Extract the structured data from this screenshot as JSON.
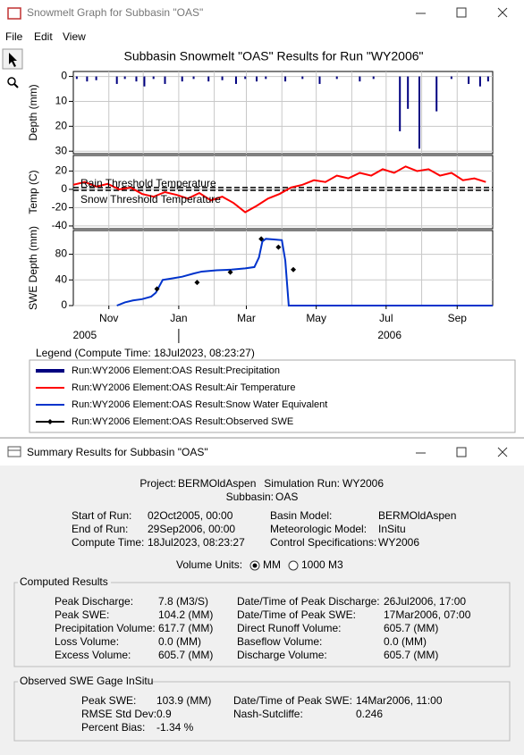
{
  "window": {
    "title": "Snowmelt Graph for Subbasin \"OAS\"",
    "menu": [
      "File",
      "Edit",
      "View"
    ]
  },
  "chart_data": [
    {
      "type": "bar",
      "title": "Subbasin Snowmelt \"OAS\" Results for Run \"WY2006\"",
      "y_label": "Depth (mm)",
      "x": [
        3,
        12,
        20,
        38,
        45,
        55,
        62,
        70,
        80,
        95,
        105,
        118,
        130,
        142,
        150,
        160,
        168,
        185,
        200,
        215,
        230,
        250,
        262,
        285,
        292,
        302,
        317,
        330,
        345,
        355,
        362
      ],
      "series": [
        {
          "name": "Run:WY2006 Element:OAS Result:Precipitation",
          "color": "#000080",
          "values": [
            1,
            2,
            1.5,
            3,
            1,
            2,
            4,
            1,
            3,
            2,
            1,
            2,
            1.5,
            3,
            1,
            2,
            1,
            2,
            1,
            3,
            1,
            2,
            1,
            22,
            13,
            29,
            14,
            1,
            3,
            4,
            2
          ]
        }
      ],
      "xlim": [
        0,
        366
      ],
      "ylim": [
        -2,
        31
      ],
      "y_inverted": true,
      "yticks": [
        0,
        10,
        20,
        30
      ],
      "grid": true
    },
    {
      "type": "line",
      "y_label": "Temp (C)",
      "x": [
        0,
        10,
        20,
        30,
        40,
        50,
        60,
        70,
        80,
        90,
        100,
        110,
        120,
        130,
        140,
        150,
        160,
        170,
        180,
        190,
        200,
        210,
        220,
        230,
        240,
        250,
        260,
        270,
        280,
        290,
        300,
        310,
        320,
        330,
        340,
        350,
        360
      ],
      "series": [
        {
          "name": "Run:WY2006 Element:OAS Result:Air Temperature",
          "color": "#ff0000",
          "values": [
            5,
            8,
            3,
            6,
            0,
            2,
            -5,
            -8,
            -3,
            -6,
            -10,
            -4,
            -12,
            -8,
            -15,
            -25,
            -18,
            -10,
            -5,
            2,
            5,
            10,
            8,
            15,
            12,
            18,
            15,
            22,
            18,
            25,
            20,
            22,
            15,
            18,
            10,
            12,
            8
          ]
        }
      ],
      "thresholds": [
        {
          "label": "Rain Threshold Temperature",
          "value": 2
        },
        {
          "label": "Snow Threshold Temperature",
          "value": -1
        }
      ],
      "xlim": [
        0,
        366
      ],
      "ylim": [
        -43,
        37
      ],
      "yticks": [
        -40,
        -20,
        0,
        20
      ],
      "grid": true
    },
    {
      "type": "line",
      "y_label": "SWE Depth (mm)",
      "series": [
        {
          "name": "Run:WY2006 Element:OAS Result:Snow Water Equivalent",
          "color": "#0033cc",
          "x": [
            38,
            45,
            52,
            60,
            68,
            72,
            78,
            85,
            95,
            105,
            112,
            125,
            138,
            150,
            158,
            162,
            165,
            168,
            175,
            182,
            185,
            188,
            195,
            250,
            366
          ],
          "values": [
            0,
            5,
            8,
            10,
            14,
            20,
            40,
            42,
            45,
            50,
            53,
            55,
            56,
            58,
            60,
            75,
            100,
            104,
            103,
            102,
            70,
            0,
            0,
            0,
            0
          ]
        },
        {
          "name": "Run:WY2006 Element:OAS Result:Observed SWE",
          "color": "#000000",
          "markers": true,
          "x": [
            73,
            108,
            137,
            164,
            179,
            192
          ],
          "values": [
            26,
            36,
            52,
            104,
            91,
            56
          ]
        }
      ],
      "xlim": [
        0,
        366
      ],
      "ylim": [
        0,
        117
      ],
      "yticks": [
        0,
        40,
        80
      ],
      "grid": true,
      "xticks": [
        {
          "value": 31,
          "label": "Nov"
        },
        {
          "value": 92,
          "label": "Jan"
        },
        {
          "value": 151,
          "label": "Mar"
        },
        {
          "value": 212,
          "label": "May"
        },
        {
          "value": 273,
          "label": "Jul"
        },
        {
          "value": 335,
          "label": "Sep"
        }
      ],
      "xminor": [
        61,
        123,
        182,
        243,
        304
      ],
      "years": [
        {
          "value": 10,
          "label": "2005"
        },
        {
          "value": 276,
          "label": "2006"
        }
      ]
    }
  ],
  "legend": {
    "title": "Legend (Compute Time: 18Jul2023, 08:23:27)"
  },
  "summary": {
    "title": "Summary Results for Subbasin \"OAS\"",
    "header": [
      [
        "Project:",
        "BERMOldAspen"
      ],
      [
        "Simulation Run:",
        "WY2006"
      ],
      [
        "Subbasin:",
        "OAS"
      ]
    ],
    "run_info": [
      [
        "Start of Run:",
        "02Oct2005, 00:00"
      ],
      [
        "Basin Model:",
        "BERMOldAspen"
      ],
      [
        "End of Run:",
        "29Sep2006, 00:00"
      ],
      [
        "Meteorologic Model:",
        "InSitu"
      ],
      [
        "Compute Time:",
        "18Jul2023, 08:23:27"
      ],
      [
        "Control Specifications:",
        "WY2006"
      ]
    ],
    "volume_units": {
      "label": "Volume Units:",
      "options": [
        "MM",
        "1000 M3"
      ]
    },
    "computed": {
      "title": "Computed Results",
      "items": [
        [
          "Peak Discharge:",
          "7.8 (M3/S)"
        ],
        [
          "Date/Time of Peak Discharge:",
          "26Jul2006, 17:00"
        ],
        [
          "Peak SWE:",
          "104.2 (MM)"
        ],
        [
          "Date/Time of Peak SWE:",
          "17Mar2006, 07:00"
        ],
        [
          "Precipitation Volume:",
          "617.7 (MM)"
        ],
        [
          "Direct Runoff Volume:",
          "605.7 (MM)"
        ],
        [
          "Loss Volume:",
          "0.0 (MM)"
        ],
        [
          "Baseflow Volume:",
          "0.0 (MM)"
        ],
        [
          "Excess Volume:",
          "605.7 (MM)"
        ],
        [
          "Discharge Volume:",
          "605.7 (MM)"
        ]
      ]
    },
    "observed": {
      "title": "Observed SWE Gage InSitu",
      "items": [
        [
          "Peak SWE:",
          "103.9 (MM)"
        ],
        [
          "Date/Time of Peak SWE:",
          "14Mar2006, 11:00"
        ],
        [
          "RMSE Std Dev:",
          "0.9"
        ],
        [
          "Nash-Sutcliffe:",
          "0.246"
        ],
        [
          "Percent Bias:",
          "-1.34 %"
        ]
      ]
    }
  }
}
